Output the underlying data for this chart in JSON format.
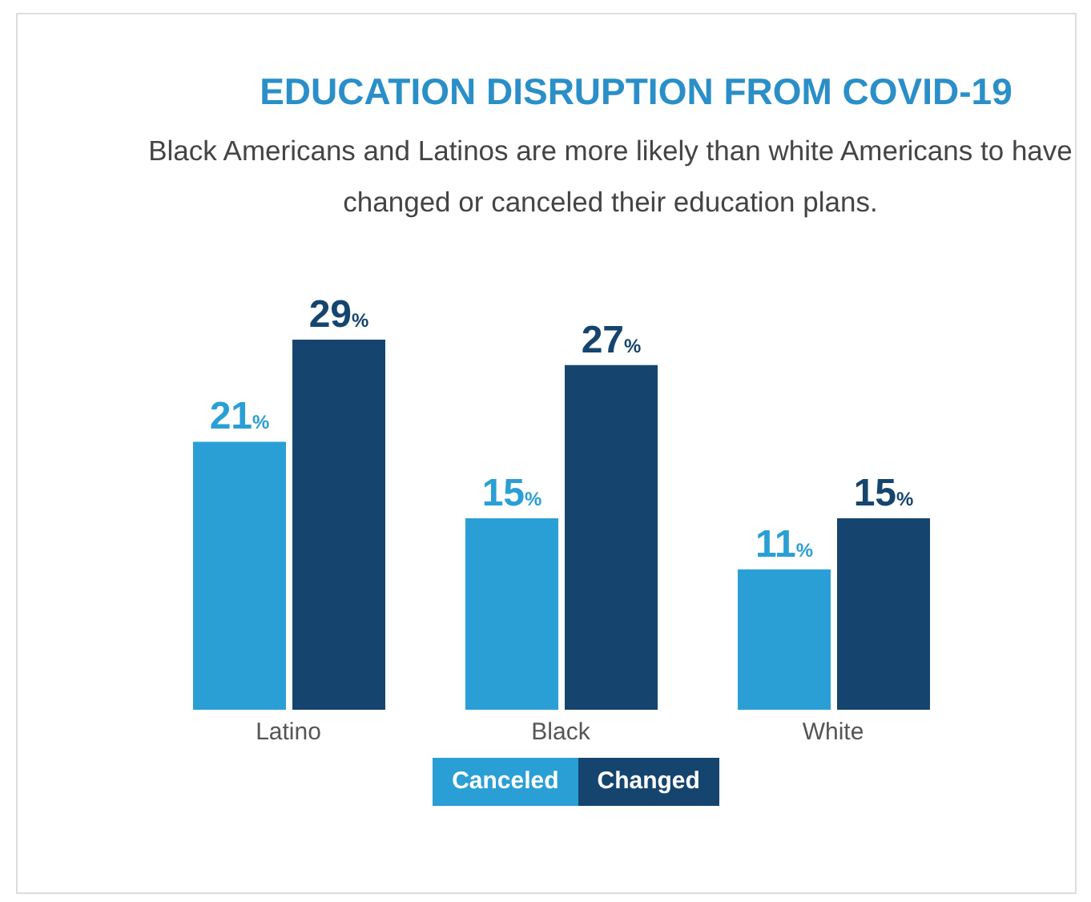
{
  "chart_data": {
    "type": "bar",
    "title": "EDUCATION DISRUPTION FROM COVID-19",
    "subtitle": "Black Americans and Latinos are more likely than white Americans to have changed or canceled their education plans.",
    "categories": [
      "Latino",
      "Black",
      "White"
    ],
    "series": [
      {
        "name": "Canceled",
        "color": "#2a9fd6",
        "values": [
          21,
          15,
          11
        ],
        "value_labels": [
          "21%",
          "15%",
          "11%"
        ]
      },
      {
        "name": "Changed",
        "color": "#15456e",
        "values": [
          29,
          27,
          15
        ],
        "value_labels": [
          "29%",
          "27%",
          "15%"
        ]
      }
    ],
    "legend": "bottom",
    "grid": false
  }
}
